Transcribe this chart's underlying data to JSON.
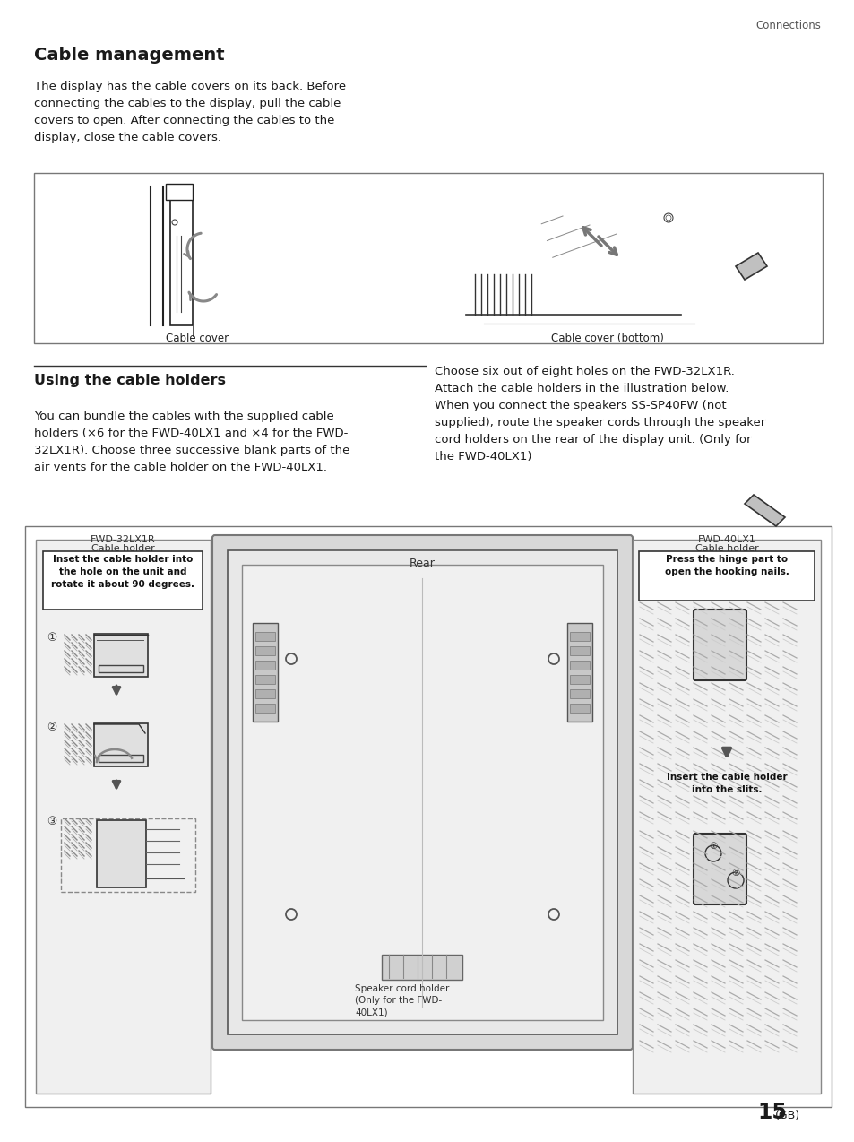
{
  "page_title": "Cable management",
  "section_header": "Connections",
  "page_number": "15",
  "page_suffix": "(GB)",
  "body_text1": "The display has the cable covers on its back. Before\nconnecting the cables to the display, pull the cable\ncovers to open. After connecting the cables to the\ndisplay, close the cable covers.",
  "section2_title": "Using the cable holders",
  "body_text2": "You can bundle the cables with the supplied cable\nholders (×6 for the FWD-40LX1 and ×4 for the FWD-\n32LX1R). Choose three successive blank parts of the\nair vents for the cable holder on the FWD-40LX1.",
  "body_text3": "Choose six out of eight holes on the FWD-32LX1R.\nAttach the cable holders in the illustration below.\nWhen you connect the speakers SS-SP40FW (not\nsupplied), route the speaker cords through the speaker\ncord holders on the rear of the display unit. (Only for\nthe FWD-40LX1)",
  "box1_label_left": "Cable cover",
  "box1_label_right": "Cable cover (bottom)",
  "box2_label_top_left1": "FWD-32LX1R",
  "box2_label_top_left2": "Cable holder",
  "box2_label_top_right1": "FWD-40LX1",
  "box2_label_top_right2": "Cable holder",
  "box2_inset_text1": "Inset the cable holder into\nthe hole on the unit and\nrotate it about 90 degrees.",
  "box2_inset_text2": "Press the hinge part to\nopen the hooking nails.",
  "box2_inset_text3": "Insert the cable holder\ninto the slits.",
  "box2_rear_label": "Rear",
  "box2_speaker_label": "Speaker cord holder\n(Only for the FWD-\n40LX1)",
  "bg_color": "#ffffff",
  "text_color": "#1a1a1a",
  "gray1": "#333333",
  "gray2": "#666666",
  "gray3": "#999999",
  "gray4": "#cccccc",
  "box_bg": "#f5f5f5",
  "border_color": "#888888"
}
